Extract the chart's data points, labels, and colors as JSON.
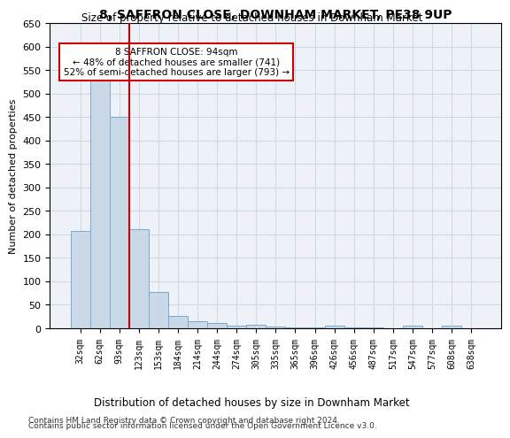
{
  "title": "8, SAFFRON CLOSE, DOWNHAM MARKET, PE38 9UP",
  "subtitle": "Size of property relative to detached houses in Downham Market",
  "xlabel_bottom": "Distribution of detached houses by size in Downham Market",
  "ylabel": "Number of detached properties",
  "footnote1": "Contains HM Land Registry data © Crown copyright and database right 2024.",
  "footnote2": "Contains public sector information licensed under the Open Government Licence v3.0.",
  "annotation_title": "8 SAFFRON CLOSE: 94sqm",
  "annotation_line1": "← 48% of detached houses are smaller (741)",
  "annotation_line2": "52% of semi-detached houses are larger (793) →",
  "property_sqm": 94,
  "bar_color": "#c9d9e8",
  "bar_edge_color": "#7aaac8",
  "red_line_color": "#cc0000",
  "annotation_box_color": "#ffffff",
  "annotation_box_edge": "#cc0000",
  "grid_color": "#d0d8e8",
  "background_color": "#eef2f8",
  "categories": [
    "32sqm",
    "62sqm",
    "93sqm",
    "123sqm",
    "153sqm",
    "184sqm",
    "214sqm",
    "244sqm",
    "274sqm",
    "305sqm",
    "335sqm",
    "365sqm",
    "396sqm",
    "426sqm",
    "456sqm",
    "487sqm",
    "517sqm",
    "547sqm",
    "577sqm",
    "608sqm",
    "638sqm"
  ],
  "values": [
    207,
    530,
    450,
    211,
    78,
    27,
    15,
    12,
    5,
    8,
    3,
    2,
    1,
    6,
    1,
    1,
    0,
    6,
    0,
    6,
    0
  ],
  "ylim": [
    0,
    650
  ],
  "yticks": [
    0,
    50,
    100,
    150,
    200,
    250,
    300,
    350,
    400,
    450,
    500,
    550,
    600,
    650
  ]
}
